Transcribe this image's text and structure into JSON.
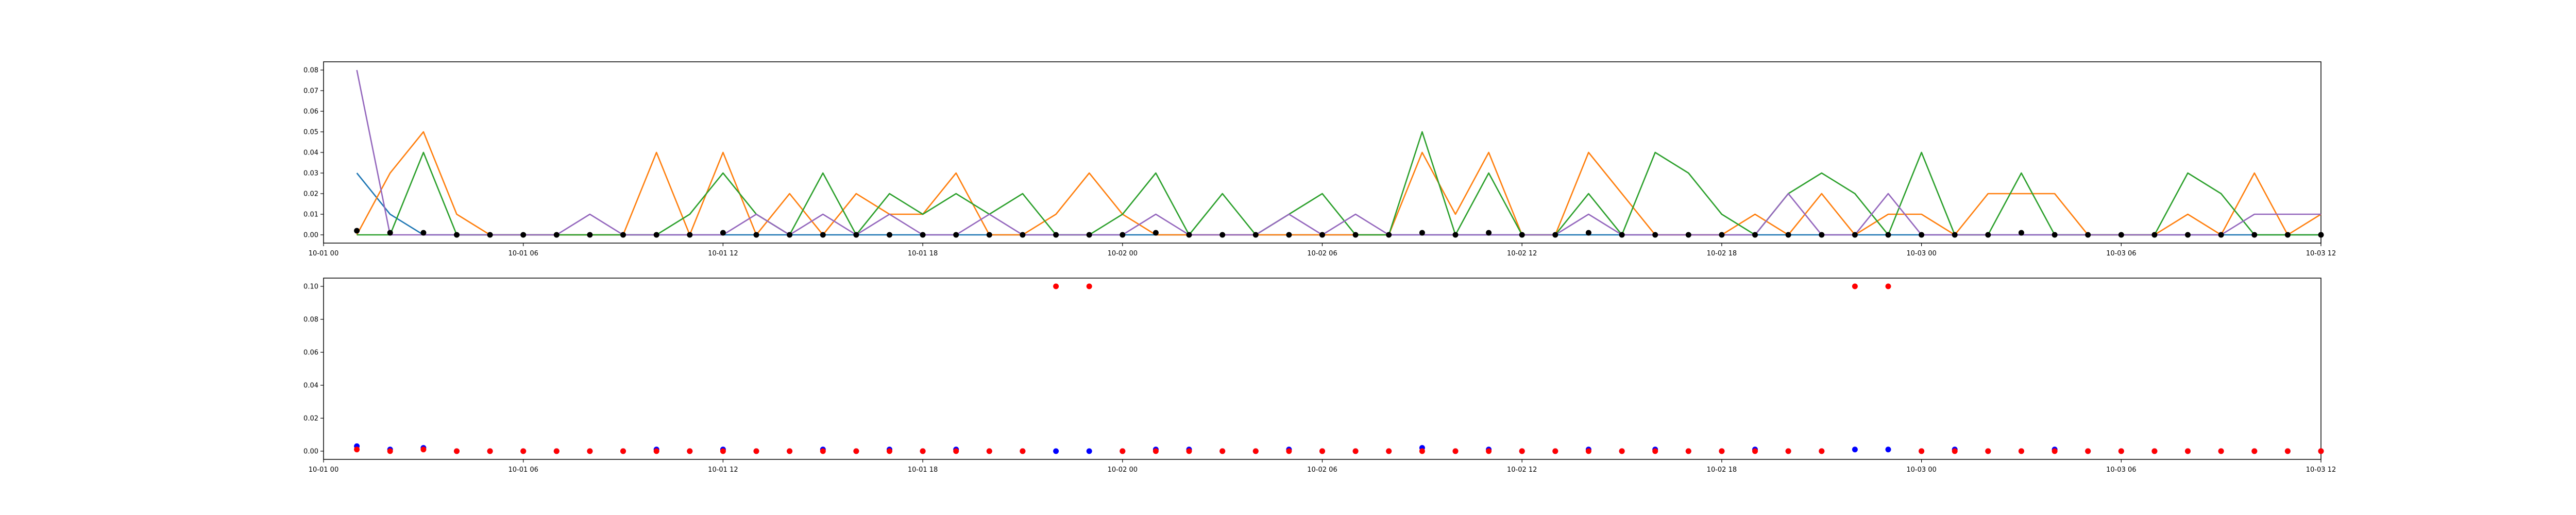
{
  "chart_data": [
    {
      "type": "line",
      "x_axis": {
        "type": "date",
        "min": "2023-10-01T00:00",
        "max": "2023-10-03T12:00",
        "ticks": [
          "2023-10-01T00:00",
          "2023-10-01T06:00",
          "2023-10-01T12:00",
          "2023-10-01T18:00",
          "2023-10-02T00:00",
          "2023-10-02T06:00",
          "2023-10-02T12:00",
          "2023-10-02T18:00",
          "2023-10-03T00:00",
          "2023-10-03T06:00",
          "2023-10-03T12:00"
        ],
        "tick_labels": [
          "10-01 00",
          "10-01 06",
          "10-01 12",
          "10-01 18",
          "10-02 00",
          "10-02 06",
          "10-02 12",
          "10-02 18",
          "10-03 00",
          "10-03 06",
          "10-03 12"
        ]
      },
      "y_axis": {
        "min": -0.004,
        "max": 0.084,
        "ticks": [
          0.0,
          0.01,
          0.02,
          0.03,
          0.04,
          0.05,
          0.06,
          0.07,
          0.08
        ],
        "tick_labels": [
          "0.00",
          "0.01",
          "0.02",
          "0.03",
          "0.04",
          "0.05",
          "0.06",
          "0.07",
          "0.08"
        ]
      },
      "grid": false,
      "x": [
        "2023-10-01T01:00",
        "2023-10-01T02:00",
        "2023-10-01T03:00",
        "2023-10-01T04:00",
        "2023-10-01T05:00",
        "2023-10-01T06:00",
        "2023-10-01T07:00",
        "2023-10-01T08:00",
        "2023-10-01T09:00",
        "2023-10-01T10:00",
        "2023-10-01T11:00",
        "2023-10-01T12:00",
        "2023-10-01T13:00",
        "2023-10-01T14:00",
        "2023-10-01T15:00",
        "2023-10-01T16:00",
        "2023-10-01T17:00",
        "2023-10-01T18:00",
        "2023-10-01T19:00",
        "2023-10-01T20:00",
        "2023-10-01T21:00",
        "2023-10-01T22:00",
        "2023-10-01T23:00",
        "2023-10-02T00:00",
        "2023-10-02T01:00",
        "2023-10-02T02:00",
        "2023-10-02T03:00",
        "2023-10-02T04:00",
        "2023-10-02T05:00",
        "2023-10-02T06:00",
        "2023-10-02T07:00",
        "2023-10-02T08:00",
        "2023-10-02T09:00",
        "2023-10-02T10:00",
        "2023-10-02T11:00",
        "2023-10-02T12:00",
        "2023-10-02T13:00",
        "2023-10-02T14:00",
        "2023-10-02T15:00",
        "2023-10-02T16:00",
        "2023-10-02T17:00",
        "2023-10-02T18:00",
        "2023-10-02T19:00",
        "2023-10-02T20:00",
        "2023-10-02T21:00",
        "2023-10-02T22:00",
        "2023-10-02T23:00",
        "2023-10-03T00:00",
        "2023-10-03T01:00",
        "2023-10-03T02:00",
        "2023-10-03T03:00",
        "2023-10-03T04:00",
        "2023-10-03T05:00",
        "2023-10-03T06:00",
        "2023-10-03T07:00",
        "2023-10-03T08:00",
        "2023-10-03T09:00",
        "2023-10-03T10:00",
        "2023-10-03T11:00",
        "2023-10-03T12:00"
      ],
      "series": [
        {
          "kind": "line",
          "color": "#1f77b4",
          "values": [
            0.03,
            0.01,
            0,
            0,
            0,
            0,
            0,
            0,
            0,
            0,
            0,
            0,
            0,
            0,
            0,
            0,
            0,
            0,
            0,
            0,
            0,
            0,
            0,
            0,
            0,
            0,
            0,
            0,
            0,
            0,
            0,
            0,
            0,
            0,
            0,
            0,
            0,
            0,
            0,
            0,
            0,
            0,
            0,
            0,
            0,
            0,
            0,
            0,
            0,
            0,
            0,
            0,
            0,
            0,
            0,
            0,
            0,
            0,
            0,
            0
          ]
        },
        {
          "kind": "line",
          "color": "#ff7f0e",
          "values": [
            0,
            0.03,
            0.05,
            0.01,
            0,
            0,
            0,
            0,
            0,
            0.04,
            0,
            0.04,
            0,
            0.02,
            0,
            0.02,
            0.01,
            0.01,
            0.03,
            0,
            0,
            0.01,
            0.03,
            0.01,
            0,
            0,
            0,
            0,
            0,
            0,
            0,
            0,
            0.04,
            0.01,
            0.04,
            0,
            0,
            0.04,
            0.02,
            0,
            0,
            0,
            0.01,
            0,
            0.02,
            0,
            0.01,
            0.01,
            0,
            0.02,
            0.02,
            0.02,
            0,
            0,
            0,
            0.01,
            0,
            0.03,
            0,
            0.01
          ]
        },
        {
          "kind": "line",
          "color": "#2ca02c",
          "values": [
            0,
            0,
            0.04,
            0,
            0,
            0,
            0,
            0,
            0,
            0,
            0.01,
            0.03,
            0.01,
            0,
            0.03,
            0,
            0.02,
            0.01,
            0.02,
            0.01,
            0.02,
            0,
            0,
            0.01,
            0.03,
            0,
            0.02,
            0,
            0.01,
            0.02,
            0,
            0,
            0.05,
            0,
            0.03,
            0,
            0,
            0.02,
            0,
            0.04,
            0.03,
            0.01,
            0,
            0.02,
            0.03,
            0.02,
            0,
            0.04,
            0,
            0,
            0.03,
            0,
            0,
            0,
            0,
            0.03,
            0.02,
            0,
            0,
            0
          ]
        },
        {
          "kind": "line",
          "color": "#9467bd",
          "values": [
            0.08,
            0,
            0,
            0,
            0,
            0,
            0,
            0.01,
            0,
            0,
            0,
            0,
            0.01,
            0,
            0.01,
            0,
            0.01,
            0,
            0,
            0.01,
            0,
            0,
            0,
            0,
            0.01,
            0,
            0,
            0,
            0.01,
            0,
            0.01,
            0,
            0,
            0,
            0,
            0,
            0,
            0.01,
            0,
            0,
            0,
            0,
            0,
            0.02,
            0,
            0,
            0.02,
            0,
            0,
            0,
            0,
            0,
            0,
            0,
            0,
            0,
            0,
            0.01,
            0.01,
            0.01
          ]
        },
        {
          "kind": "scatter",
          "color": "#000000",
          "values": [
            0.002,
            0.001,
            0.001,
            0,
            0,
            0,
            0,
            0,
            0,
            0,
            0,
            0.001,
            0,
            0,
            0,
            0,
            0,
            0,
            0,
            0,
            0,
            0,
            0,
            0,
            0.001,
            0,
            0,
            0,
            0,
            0,
            0,
            0,
            0.001,
            0,
            0.001,
            0,
            0,
            0.001,
            0,
            0,
            0,
            0,
            0,
            0,
            0,
            0,
            0,
            0,
            0,
            0,
            0.001,
            0,
            0,
            0,
            0,
            0,
            0,
            0,
            0,
            0
          ]
        }
      ]
    },
    {
      "type": "scatter",
      "x_axis": {
        "type": "date",
        "min": "2023-10-01T00:00",
        "max": "2023-10-03T12:00",
        "ticks": [
          "2023-10-01T00:00",
          "2023-10-01T06:00",
          "2023-10-01T12:00",
          "2023-10-01T18:00",
          "2023-10-02T00:00",
          "2023-10-02T06:00",
          "2023-10-02T12:00",
          "2023-10-02T18:00",
          "2023-10-03T00:00",
          "2023-10-03T06:00",
          "2023-10-03T12:00"
        ],
        "tick_labels": [
          "10-01 00",
          "10-01 06",
          "10-01 12",
          "10-01 18",
          "10-02 00",
          "10-02 06",
          "10-02 12",
          "10-02 18",
          "10-03 00",
          "10-03 06",
          "10-03 12"
        ]
      },
      "y_axis": {
        "min": -0.005,
        "max": 0.105,
        "ticks": [
          0.0,
          0.02,
          0.04,
          0.06,
          0.08,
          0.1
        ],
        "tick_labels": [
          "0.00",
          "0.02",
          "0.04",
          "0.06",
          "0.08",
          "0.10"
        ]
      },
      "grid": false,
      "x": [
        "2023-10-01T01:00",
        "2023-10-01T02:00",
        "2023-10-01T03:00",
        "2023-10-01T04:00",
        "2023-10-01T05:00",
        "2023-10-01T06:00",
        "2023-10-01T07:00",
        "2023-10-01T08:00",
        "2023-10-01T09:00",
        "2023-10-01T10:00",
        "2023-10-01T11:00",
        "2023-10-01T12:00",
        "2023-10-01T13:00",
        "2023-10-01T14:00",
        "2023-10-01T15:00",
        "2023-10-01T16:00",
        "2023-10-01T17:00",
        "2023-10-01T18:00",
        "2023-10-01T19:00",
        "2023-10-01T20:00",
        "2023-10-01T21:00",
        "2023-10-01T22:00",
        "2023-10-01T23:00",
        "2023-10-02T00:00",
        "2023-10-02T01:00",
        "2023-10-02T02:00",
        "2023-10-02T03:00",
        "2023-10-02T04:00",
        "2023-10-02T05:00",
        "2023-10-02T06:00",
        "2023-10-02T07:00",
        "2023-10-02T08:00",
        "2023-10-02T09:00",
        "2023-10-02T10:00",
        "2023-10-02T11:00",
        "2023-10-02T12:00",
        "2023-10-02T13:00",
        "2023-10-02T14:00",
        "2023-10-02T15:00",
        "2023-10-02T16:00",
        "2023-10-02T17:00",
        "2023-10-02T18:00",
        "2023-10-02T19:00",
        "2023-10-02T20:00",
        "2023-10-02T21:00",
        "2023-10-02T22:00",
        "2023-10-02T23:00",
        "2023-10-03T00:00",
        "2023-10-03T01:00",
        "2023-10-03T02:00",
        "2023-10-03T03:00",
        "2023-10-03T04:00",
        "2023-10-03T05:00",
        "2023-10-03T06:00",
        "2023-10-03T07:00",
        "2023-10-03T08:00",
        "2023-10-03T09:00",
        "2023-10-03T10:00",
        "2023-10-03T11:00",
        "2023-10-03T12:00"
      ],
      "series": [
        {
          "kind": "scatter",
          "color": "#0000ff",
          "values": [
            0.003,
            0.001,
            0.002,
            0,
            0,
            0,
            0,
            0,
            0,
            0.001,
            0,
            0.001,
            0,
            0,
            0.001,
            0,
            0.001,
            0,
            0.001,
            0,
            0,
            0,
            0,
            0,
            0.001,
            0.001,
            0,
            0,
            0.001,
            0,
            0,
            0,
            0.002,
            0,
            0.001,
            0,
            0,
            0.001,
            0,
            0.001,
            0,
            0,
            0.001,
            0,
            0,
            0.001,
            0.001,
            0,
            0.001,
            0,
            0,
            0.001,
            0,
            0,
            0,
            0,
            0,
            0,
            0,
            0
          ]
        },
        {
          "kind": "scatter",
          "color": "#ff0000",
          "values": [
            0.001,
            0,
            0.001,
            0,
            0,
            0,
            0,
            0,
            0,
            0,
            0,
            0,
            0,
            0,
            0,
            0,
            0,
            0,
            0,
            0,
            0,
            0.1,
            0.1,
            0,
            0,
            0,
            0,
            0,
            0,
            0,
            0,
            0,
            0,
            0,
            0,
            0,
            0,
            0,
            0,
            0,
            0,
            0,
            0,
            0,
            0,
            0.1,
            0.1,
            0,
            0,
            0,
            0,
            0,
            0,
            0,
            0,
            0,
            0,
            0,
            0,
            0
          ]
        }
      ]
    }
  ]
}
